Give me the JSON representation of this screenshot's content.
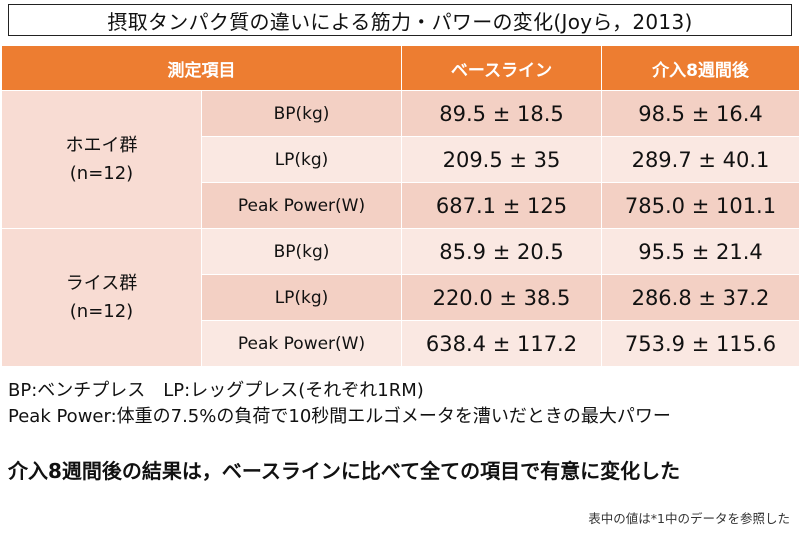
{
  "title": "摂取タンパク質の違いによる筋力・パワーの変化(Joyら，2013)",
  "table": {
    "headers": [
      "測定項目",
      "ベースライン",
      "介入8週間後"
    ],
    "groups": [
      {
        "name": "ホエイ群",
        "n": "(n=12)",
        "rows": [
          {
            "item": "BP(kg)",
            "baseline": "89.5 ± 18.5",
            "after": "98.5 ± 16.4"
          },
          {
            "item": "LP(kg)",
            "baseline": "209.5 ± 35",
            "after": "289.7 ± 40.1"
          },
          {
            "item": "Peak Power(W)",
            "baseline": "687.1 ± 125",
            "after": "785.0 ± 101.1"
          }
        ]
      },
      {
        "name": "ライス群",
        "n": "(n=12)",
        "rows": [
          {
            "item": "BP(kg)",
            "baseline": "85.9 ± 20.5",
            "after": "95.5 ± 21.4"
          },
          {
            "item": "LP(kg)",
            "baseline": "220.0 ± 38.5",
            "after": "286.8 ± 37.2"
          },
          {
            "item": "Peak Power(W)",
            "baseline": "638.4 ± 117.2",
            "after": "753.9 ± 115.6"
          }
        ]
      }
    ]
  },
  "notes": [
    "BP:ベンチプレス　LP:レッグプレス(それぞれ1RM)",
    "Peak Power:体重の7.5%の負荷で10秒間エルゴメータを漕いだときの最大パワー"
  ],
  "conclusion": "介入8週間後の結果は，ベースラインに比べて全ての項目で有意に変化した",
  "footnote": "表中の値は*1中のデータを参照した",
  "colors": {
    "header": "#ED7D31",
    "row_dark": "#F3D0C4",
    "row_light": "#FAE8E2"
  }
}
